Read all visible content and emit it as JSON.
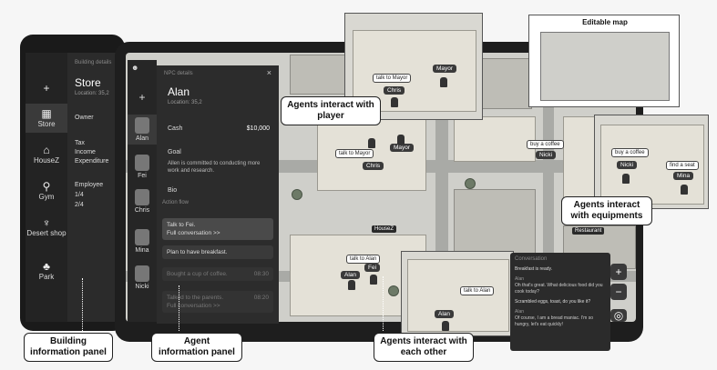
{
  "building_panel": {
    "header_hint": "Building details",
    "title": "Store",
    "location": "Location: 35,2",
    "owner_label": "Owner",
    "tax_label": "Tax",
    "income_label": "Income",
    "expenditure_label": "Expenditure",
    "employee_label": "Employee",
    "employee_val1": "1/4",
    "employee_val2": "2/4",
    "sidebar": [
      {
        "label": "Store",
        "icon": "store-icon",
        "glyph": "▦"
      },
      {
        "label": "HouseZ",
        "icon": "house-icon",
        "glyph": "⌂"
      },
      {
        "label": "Gym",
        "icon": "gym-icon",
        "glyph": "⚲"
      },
      {
        "label": "Desert shop",
        "icon": "icecream-icon",
        "glyph": "♆"
      },
      {
        "label": "Park",
        "icon": "park-icon",
        "glyph": "♣"
      }
    ],
    "add_glyph": "+"
  },
  "agent_panel": {
    "header": "NPC details",
    "close_glyph": "×",
    "name": "Alan",
    "location": "Location: 35,2",
    "cash_label": "Cash",
    "cash_value": "$10,000",
    "goal_label": "Goal",
    "goal_text": "Allen is committed to conducting more work and research.",
    "bio_label": "Bio",
    "action_header": "Action flow",
    "actions": [
      {
        "line1": "Talk to Fei.",
        "line2": "Full conversation >>",
        "time": ""
      },
      {
        "line1": "Plan to have breakfast.",
        "line2": "",
        "time": ""
      },
      {
        "line1": "Bought a cup of coffee.",
        "line2": "",
        "time": "08:30"
      },
      {
        "line1": "Talked to the parents.",
        "line2": "Full conversation >>",
        "time": "08:20"
      }
    ],
    "agents": [
      "Alan",
      "Fei",
      "Chris",
      "Mina",
      "Nicki"
    ],
    "add_glyph": "+"
  },
  "map": {
    "location_labels": [
      "HouseZ",
      "Restaurant"
    ],
    "bubbles": [
      "talk to Mayor",
      "talk to Alan",
      "buy a coffee",
      "find a seat"
    ],
    "nametags": [
      "Mayor",
      "Chris",
      "Alan",
      "Fei",
      "Nicki",
      "Mina"
    ],
    "zoom_in": "+",
    "zoom_out": "−",
    "locate": "◎",
    "number_hint": "23"
  },
  "insets": {
    "map_editor_title": "Editable map",
    "player_bubble": "talk to Mayor",
    "player_tag1": "Mayor",
    "player_tag2": "Chris",
    "equip_bubble1": "buy a coffee",
    "equip_bubble2": "find a seat",
    "equip_tag1": "Nicki",
    "equip_tag2": "Mina",
    "each_bubble": "talk to Alan",
    "each_tag": "Alan"
  },
  "conversation": {
    "header": "Conversation",
    "lines": [
      "Breakfast is ready.",
      "Alan",
      "Oh that's great. What delicious food did you cook today?",
      "Scrambled eggs, toast, do you like it?",
      "Alan",
      "Of course, I am a bread maniac. I'm so hungry, let's eat quickly!"
    ]
  },
  "callouts": {
    "player": "Agents interact with player",
    "equipments": "Agents interact with equipments",
    "each_other": "Agents interact with each other",
    "building_panel": "Building information panel",
    "agent_panel": "Agent information panel"
  }
}
